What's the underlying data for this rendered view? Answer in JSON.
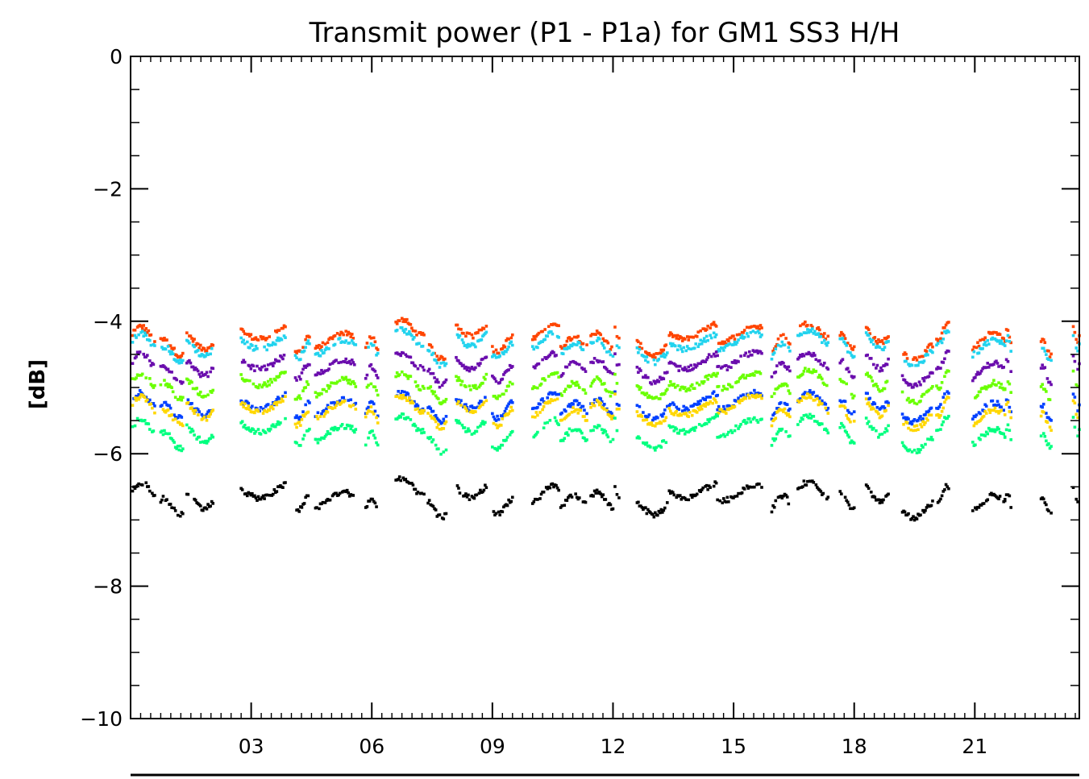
{
  "chart_data": {
    "type": "scatter",
    "title": "Transmit power (P1 - P1a) for GM1 SS3 H/H",
    "xlabel": "",
    "ylabel": "[dB]",
    "xlim": [
      0,
      23.6
    ],
    "ylim": [
      -10,
      0
    ],
    "x_tick_labels": [
      "03",
      "06",
      "09",
      "12",
      "15",
      "18",
      "21"
    ],
    "x_tick_values": [
      3,
      6,
      9,
      12,
      15,
      18,
      21
    ],
    "y_tick_labels": [
      "0",
      "−2",
      "−4",
      "−6",
      "−8",
      "−10"
    ],
    "y_tick_values": [
      0,
      -2,
      -4,
      -6,
      -8,
      -10
    ],
    "grid": false,
    "segments": [
      [
        0.05,
        0.6
      ],
      [
        0.75,
        1.3
      ],
      [
        1.4,
        2.05
      ],
      [
        2.75,
        3.85
      ],
      [
        4.1,
        4.45
      ],
      [
        4.6,
        5.6
      ],
      [
        5.85,
        6.15
      ],
      [
        6.6,
        7.3
      ],
      [
        7.4,
        7.85
      ],
      [
        8.1,
        8.85
      ],
      [
        9.0,
        9.5
      ],
      [
        10.0,
        10.65
      ],
      [
        10.7,
        11.35
      ],
      [
        11.45,
        12.0
      ],
      [
        12.05,
        12.15
      ],
      [
        12.6,
        13.35
      ],
      [
        13.4,
        14.6
      ],
      [
        14.6,
        15.7
      ],
      [
        15.95,
        16.4
      ],
      [
        16.6,
        17.35
      ],
      [
        17.65,
        18.0
      ],
      [
        18.3,
        18.85
      ],
      [
        19.2,
        19.95
      ],
      [
        20.05,
        20.35
      ],
      [
        20.95,
        21.75
      ],
      [
        21.75,
        21.9
      ],
      [
        22.65,
        22.9
      ],
      [
        23.45,
        23.6
      ]
    ],
    "series": [
      {
        "color": "#ff4500",
        "offset": 0.0,
        "values": [
          -4.2,
          -4.4,
          -4.3,
          -4.15,
          -4.35,
          -4.3,
          -4.35,
          -4.1,
          -4.45,
          -4.1,
          -4.35,
          -4.15,
          -4.35,
          -4.3,
          -4.2,
          -4.4,
          -4.15,
          -4.2,
          -4.35,
          -4.15,
          -4.3,
          -4.2,
          -4.45,
          -4.15,
          -4.3,
          -4.25,
          -4.4,
          -4.2
        ]
      },
      {
        "color": "#22d3ee",
        "offset": 0.07,
        "values": [
          -4.3,
          -4.5,
          -4.4,
          -4.3,
          -4.45,
          -4.4,
          -4.45,
          -4.25,
          -4.55,
          -4.25,
          -4.45,
          -4.3,
          -4.45,
          -4.4,
          -4.3,
          -4.5,
          -4.3,
          -4.3,
          -4.45,
          -4.25,
          -4.4,
          -4.3,
          -4.55,
          -4.25,
          -4.4,
          -4.35,
          -4.5,
          -4.3
        ]
      },
      {
        "color": "#6a0dad",
        "offset": 0.45,
        "values": [
          -4.6,
          -4.8,
          -4.7,
          -4.6,
          -4.75,
          -4.7,
          -4.8,
          -4.6,
          -4.85,
          -4.6,
          -4.8,
          -4.6,
          -4.75,
          -4.7,
          -4.6,
          -4.8,
          -4.6,
          -4.6,
          -4.75,
          -4.6,
          -4.7,
          -4.6,
          -4.85,
          -4.6,
          -4.75,
          -4.7,
          -4.8,
          -4.6
        ]
      },
      {
        "color": "#6aff00",
        "offset": 0.73,
        "values": [
          -4.9,
          -5.05,
          -5.0,
          -4.85,
          -5.05,
          -5.0,
          -5.05,
          -4.9,
          -5.1,
          -4.9,
          -5.05,
          -4.9,
          -5.05,
          -5.0,
          -4.9,
          -5.05,
          -4.9,
          -4.9,
          -5.05,
          -4.85,
          -5.0,
          -4.9,
          -5.1,
          -4.9,
          -5.05,
          -5.0,
          -5.1,
          -4.9
        ]
      },
      {
        "color": "#0040ff",
        "offset": 1.05,
        "values": [
          -5.2,
          -5.35,
          -5.3,
          -5.2,
          -5.35,
          -5.3,
          -5.35,
          -5.2,
          -5.4,
          -5.2,
          -5.35,
          -5.2,
          -5.35,
          -5.3,
          -5.2,
          -5.35,
          -5.2,
          -5.2,
          -5.35,
          -5.2,
          -5.3,
          -5.2,
          -5.4,
          -5.2,
          -5.35,
          -5.3,
          -5.4,
          -5.2
        ]
      },
      {
        "color": "#ffd700",
        "offset": 1.13,
        "values": [
          -5.25,
          -5.45,
          -5.35,
          -5.25,
          -5.45,
          -5.35,
          -5.45,
          -5.25,
          -5.5,
          -5.25,
          -5.45,
          -5.3,
          -5.45,
          -5.35,
          -5.25,
          -5.45,
          -5.3,
          -5.25,
          -5.45,
          -5.25,
          -5.4,
          -5.3,
          -5.5,
          -5.3,
          -5.45,
          -5.35,
          -5.5,
          -5.3
        ]
      },
      {
        "color": "#00ff7f",
        "offset": 1.45,
        "values": [
          -5.6,
          -5.8,
          -5.7,
          -5.55,
          -5.75,
          -5.7,
          -5.8,
          -5.55,
          -5.85,
          -5.55,
          -5.8,
          -5.6,
          -5.75,
          -5.7,
          -5.6,
          -5.8,
          -5.55,
          -5.6,
          -5.75,
          -5.55,
          -5.7,
          -5.6,
          -5.85,
          -5.55,
          -5.75,
          -5.7,
          -5.8,
          -5.6
        ]
      },
      {
        "color": "#000000",
        "offset": 2.45,
        "values": [
          -6.55,
          -6.8,
          -6.7,
          -6.55,
          -6.75,
          -6.7,
          -6.8,
          -6.5,
          -6.85,
          -6.55,
          -6.8,
          -6.6,
          -6.75,
          -6.7,
          -6.6,
          -6.8,
          -6.55,
          -6.6,
          -6.75,
          -6.55,
          -6.7,
          -6.6,
          -6.85,
          -6.6,
          -6.75,
          -6.7,
          -6.8,
          -6.6
        ]
      }
    ]
  }
}
